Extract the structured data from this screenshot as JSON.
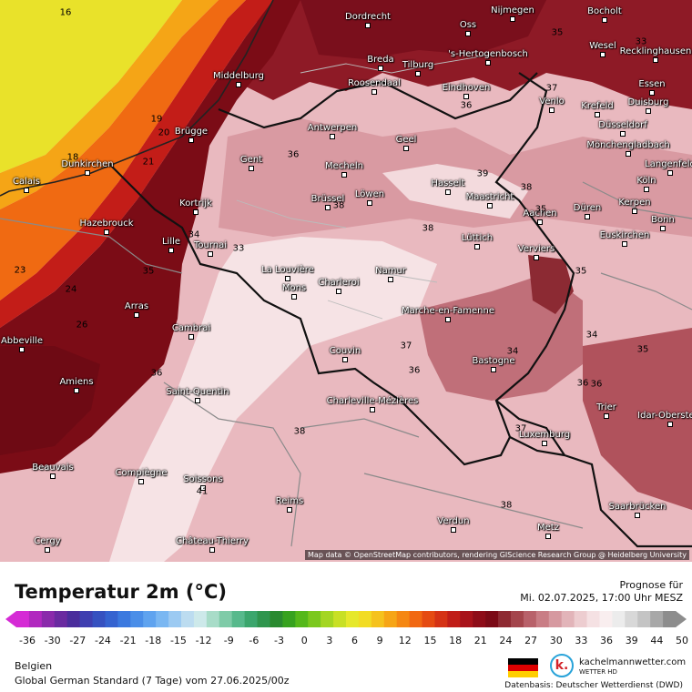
{
  "map": {
    "attribution": "Map data © OpenStreetMap contributors, rendering GIScience Research Group @ Heidelberg University",
    "cities": [
      {
        "name": "Dordrecht"
      },
      {
        "name": "Nijmegen"
      },
      {
        "name": "Bocholt"
      },
      {
        "name": "Oss"
      },
      {
        "name": "Wesel"
      },
      {
        "name": "Breda"
      },
      {
        "name": "Tilburg"
      },
      {
        "name": "'s-Hertogenbosch"
      },
      {
        "name": "Recklinghausen"
      },
      {
        "name": "Middelburg"
      },
      {
        "name": "Roosendaal"
      },
      {
        "name": "Eindhoven"
      },
      {
        "name": "Venlo"
      },
      {
        "name": "Essen"
      },
      {
        "name": "Krefeld"
      },
      {
        "name": "Duisburg"
      },
      {
        "name": "Brügge"
      },
      {
        "name": "Antwerpen"
      },
      {
        "name": "Geel"
      },
      {
        "name": "Düsseldorf"
      },
      {
        "name": "Mönchengladbach"
      },
      {
        "name": "Dunkirchen"
      },
      {
        "name": "Gent"
      },
      {
        "name": "Mecheln"
      },
      {
        "name": "Hasselt"
      },
      {
        "name": "Langenfeld"
      },
      {
        "name": "Calais"
      },
      {
        "name": "Maastricht"
      },
      {
        "name": "Köln"
      },
      {
        "name": "Kortrijk"
      },
      {
        "name": "Brüssel"
      },
      {
        "name": "Löwen"
      },
      {
        "name": "Kerpen"
      },
      {
        "name": "Düren"
      },
      {
        "name": "Aachen"
      },
      {
        "name": "Hazebrouck"
      },
      {
        "name": "Bonn"
      },
      {
        "name": "Lüttich"
      },
      {
        "name": "Euskirchen"
      },
      {
        "name": "Lille"
      },
      {
        "name": "Tournai"
      },
      {
        "name": "Verviers"
      },
      {
        "name": "La Louvière"
      },
      {
        "name": "Namur"
      },
      {
        "name": "Charleroi"
      },
      {
        "name": "Mons"
      },
      {
        "name": "Arras"
      },
      {
        "name": "Marche-en-Famenne"
      },
      {
        "name": "Cambrai"
      },
      {
        "name": "Abbeville"
      },
      {
        "name": "Couvin"
      },
      {
        "name": "Bastogne"
      },
      {
        "name": "Amiens"
      },
      {
        "name": "Saint-Quentin"
      },
      {
        "name": "Charleville-Mézières"
      },
      {
        "name": "Trier"
      },
      {
        "name": "Idar-Oberstein"
      },
      {
        "name": "Luxemburg"
      },
      {
        "name": "Beauvais"
      },
      {
        "name": "Compiègne"
      },
      {
        "name": "Soissons"
      },
      {
        "name": "Saarbrücken"
      },
      {
        "name": "Reims"
      },
      {
        "name": "Verdun"
      },
      {
        "name": "Metz"
      },
      {
        "name": "Cergy"
      },
      {
        "name": "Château-Thierry"
      }
    ],
    "isotherm_labels": [
      "16",
      "19",
      "20",
      "21",
      "18",
      "23",
      "24",
      "26",
      "35",
      "36",
      "34",
      "33",
      "35",
      "37",
      "39",
      "38",
      "38",
      "36",
      "37",
      "38",
      "35",
      "34",
      "35",
      "36",
      "37",
      "36",
      "41",
      "38",
      "34",
      "33",
      "35",
      "36",
      "36",
      "38"
    ]
  },
  "legend": {
    "title": "Temperatur 2m (°C)",
    "forecast_label": "Prognose für",
    "forecast_time": "Mi. 02.07.2025, 17:00 Uhr MESZ",
    "ticks": [
      "-36",
      "-30",
      "-27",
      "-24",
      "-21",
      "-18",
      "-15",
      "-12",
      "-9",
      "-6",
      "-3",
      "0",
      "3",
      "6",
      "9",
      "12",
      "15",
      "18",
      "21",
      "24",
      "27",
      "30",
      "33",
      "36",
      "39",
      "44",
      "50"
    ],
    "colors": [
      "#d52bd5",
      "#b128bf",
      "#8a2aab",
      "#6a2aa0",
      "#4b2d9c",
      "#3f3fb0",
      "#3651c0",
      "#3563d0",
      "#3b79df",
      "#4a8ee8",
      "#5fa3ef",
      "#7ab7f2",
      "#9ccaf2",
      "#bcdcf0",
      "#cde9ea",
      "#a8dcc8",
      "#7fcba8",
      "#57b98c",
      "#3ba66d",
      "#2f954e",
      "#2a8a30",
      "#37a21f",
      "#55b81a",
      "#7bc81e",
      "#a4d622",
      "#c8e025",
      "#e6e82b",
      "#f2dc24",
      "#f5c21d",
      "#f6a516",
      "#f58713",
      "#f16812",
      "#e54b12",
      "#d53215",
      "#c01d18",
      "#a8121a",
      "#8e0c18",
      "#7b0a16",
      "#8e2a32",
      "#a4454c",
      "#b8616a",
      "#c97d85",
      "#d699a0",
      "#e2b4b9",
      "#edcdd0",
      "#f5e1e3",
      "#f9eeef",
      "#ececec",
      "#d8d8d8",
      "#c4c4c4",
      "#a8a8a8",
      "#8d8d8d"
    ]
  },
  "footer": {
    "region": "Belgien",
    "model": "Global German Standard (7 Tage) vom 27.06.2025/00z",
    "brand_name": "kachelmannwetter.com",
    "brand_sub": "WETTER HD",
    "brand_letter": "k.",
    "source": "Datenbasis: Deutscher Wetterdienst (DWD)",
    "flag_colors": [
      "#000000",
      "#dd0000",
      "#ffce00"
    ]
  }
}
